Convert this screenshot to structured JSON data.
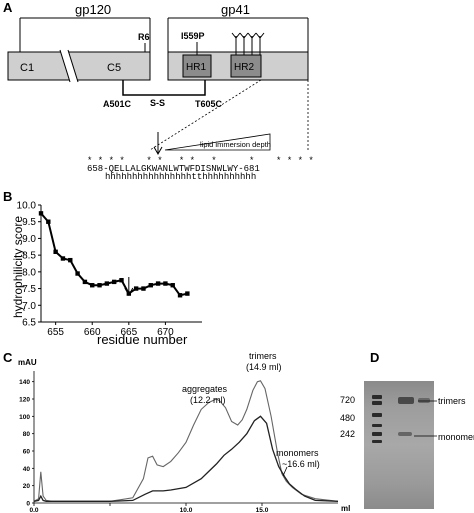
{
  "panels": {
    "a": "A",
    "b": "B",
    "c": "C",
    "d": "D"
  },
  "panel_a": {
    "gp120_label": "gp120",
    "gp41_label": "gp41",
    "c1_label": "C1",
    "c5_label": "C5",
    "hr1_label": "HR1",
    "hr2_label": "HR2",
    "r6_label": "R6",
    "i559p_label": "I559P",
    "a501c_label": "A501C",
    "t605c_label": "T605C",
    "ss_label": "S-S",
    "lipid_label": "lipid immersion depth",
    "stars": "* * * *    * *   * *   *      *    * * * *",
    "sequence": "658-QELLALGKWANLWTWFDISNWLWY-681",
    "helix": "hhhhhhhhhhhhhhhhtthhhhhhhhhh"
  },
  "chart_data": [
    {
      "type": "line",
      "panel": "B",
      "xlabel": "residue number",
      "ylabel": "hydrophilicity score",
      "xlim": [
        653,
        675
      ],
      "ylim": [
        6.5,
        10.0
      ],
      "xticks": [
        655,
        660,
        665,
        670
      ],
      "yticks": [
        6.5,
        7.0,
        7.5,
        8.0,
        8.5,
        9.0,
        9.5,
        10.0
      ],
      "x": [
        653,
        654,
        655,
        656,
        657,
        658,
        659,
        660,
        661,
        662,
        663,
        664,
        665,
        666,
        667,
        668,
        669,
        670,
        671,
        672,
        673
      ],
      "y": [
        9.75,
        9.5,
        8.6,
        8.4,
        8.35,
        7.95,
        7.7,
        7.6,
        7.6,
        7.65,
        7.7,
        7.75,
        7.35,
        7.5,
        7.5,
        7.6,
        7.65,
        7.65,
        7.6,
        7.3,
        7.35
      ],
      "arrow_x": 665
    },
    {
      "type": "line",
      "panel": "C",
      "ylabel": "mAU",
      "xlabel": "ml",
      "xlim": [
        0,
        20
      ],
      "ylim": [
        0,
        150
      ],
      "xticks": [
        0.0,
        5.0,
        10.0,
        15.0
      ],
      "xtick_labels": [
        "0.0",
        "",
        "10.0",
        "15.0"
      ],
      "yticks": [
        0,
        20,
        40,
        60,
        80,
        100,
        120,
        140
      ],
      "series": [
        {
          "x": [
            0,
            0.3,
            0.45,
            0.6,
            0.8,
            1.2,
            3,
            5,
            6.5,
            7.2,
            7.5,
            7.8,
            8.1,
            8.5,
            9,
            9.5,
            10,
            10.5,
            11,
            11.5,
            12,
            12.2,
            12.6,
            13,
            13.4,
            13.7,
            14,
            14.4,
            14.7,
            14.9,
            15.2,
            15.6,
            16,
            16.3,
            16.6,
            17,
            17.6,
            18.5,
            20
          ],
          "y": [
            2,
            5,
            36,
            8,
            3,
            2,
            2,
            2,
            6,
            28,
            52,
            54,
            44,
            42,
            48,
            58,
            70,
            90,
            108,
            116,
            120,
            118,
            110,
            94,
            90,
            96,
            108,
            130,
            140,
            141,
            132,
            100,
            60,
            34,
            25,
            18,
            10,
            5,
            2
          ]
        },
        {
          "x": [
            0,
            0.3,
            0.45,
            0.6,
            0.8,
            1.2,
            3,
            5,
            6.5,
            7.3,
            7.8,
            8.5,
            9,
            10,
            11,
            12,
            12.5,
            13,
            13.5,
            14,
            14.5,
            14.9,
            15.3,
            15.7,
            16.1,
            16.5,
            16.8,
            17.2,
            17.8,
            18.5,
            20
          ],
          "y": [
            2,
            3,
            8,
            3,
            2,
            2,
            2,
            2,
            3,
            10,
            14,
            14,
            15,
            18,
            28,
            45,
            55,
            62,
            70,
            80,
            95,
            100,
            92,
            62,
            42,
            30,
            22,
            16,
            8,
            3,
            2
          ]
        }
      ],
      "annotations": [
        {
          "text": "aggregates",
          "sub": "(12.2 ml)"
        },
        {
          "text": "trimers",
          "sub": "(14.9 ml)"
        },
        {
          "text": "monomers",
          "sub": "~16.6 ml)"
        }
      ]
    }
  ],
  "panel_d": {
    "markers": [
      "720",
      "480",
      "242"
    ],
    "trimers_label": "trimers",
    "monomers_label": "monomers"
  }
}
